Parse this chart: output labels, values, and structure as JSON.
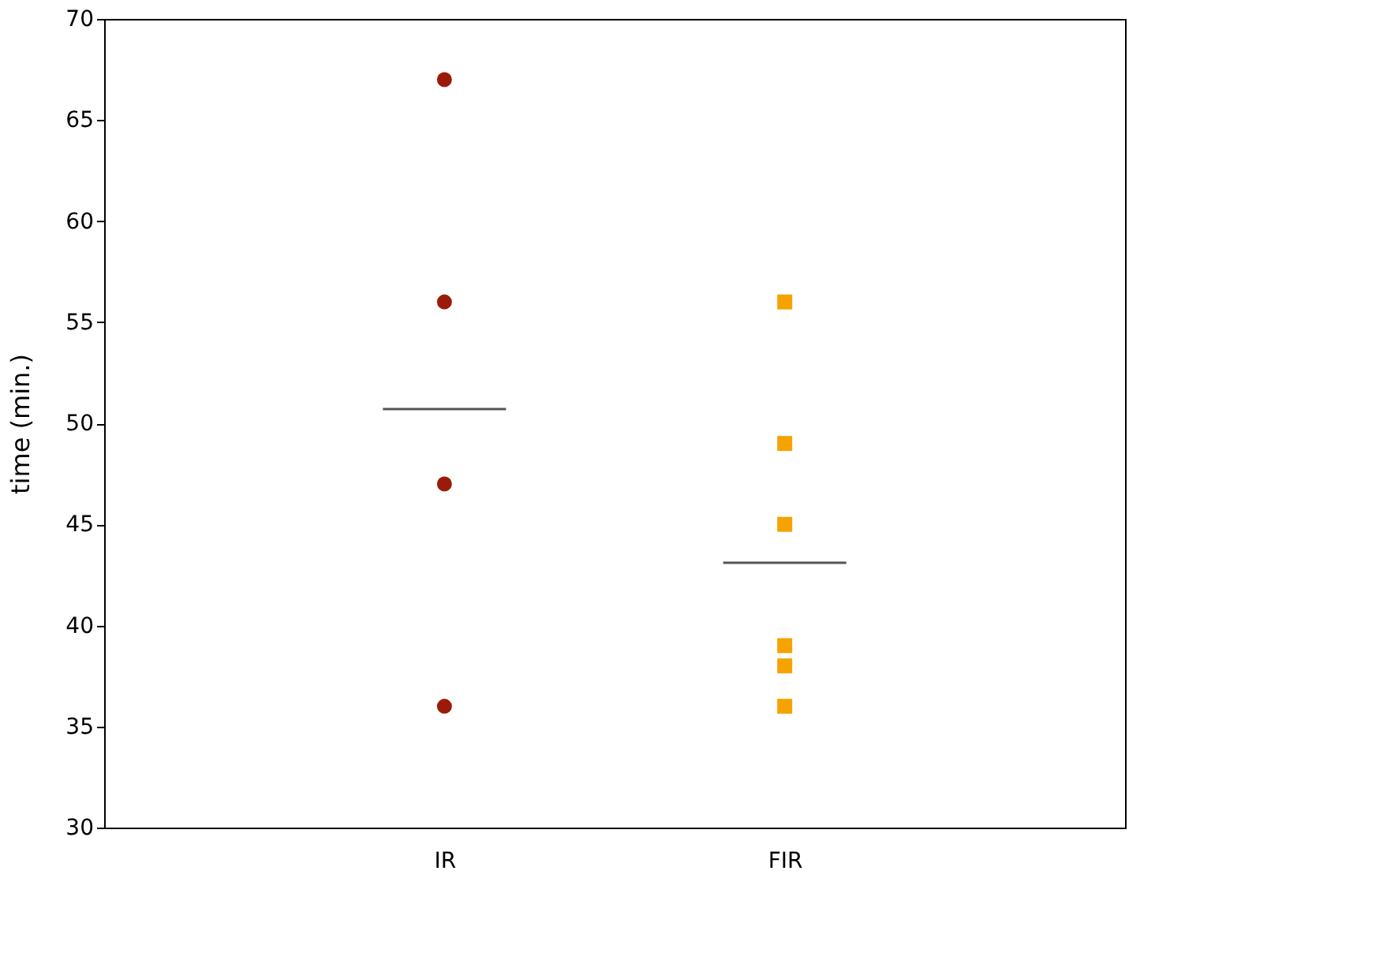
{
  "chart_data": {
    "type": "scatter",
    "ylabel": "time (min.)",
    "categories": [
      "IR",
      "FIR"
    ],
    "ylim": [
      30,
      70
    ],
    "yticks": [
      30,
      35,
      40,
      45,
      50,
      55,
      60,
      65,
      70
    ],
    "grid": false,
    "series": [
      {
        "marker": "circle",
        "color": "#9b1b0a",
        "x": [
          "IR",
          "IR",
          "IR",
          "IR"
        ],
        "values": [
          67,
          56,
          47,
          36
        ]
      },
      {
        "marker": "square",
        "color": "#f5a300",
        "x": [
          "FIR",
          "FIR",
          "FIR",
          "FIR",
          "FIR",
          "FIR"
        ],
        "values": [
          56,
          49,
          45,
          39,
          38,
          36
        ]
      },
      {
        "type": "box",
        "color": "#555555",
        "boxes": [
          {
            "low": 50.7,
            "q1": 50.7,
            "median": 50.7,
            "q3": 50.7,
            "high": 50.7
          },
          {
            "low": 43.1,
            "q1": 43.1,
            "median": 43.1,
            "q3": 43.1,
            "high": 43.1
          }
        ]
      }
    ]
  }
}
